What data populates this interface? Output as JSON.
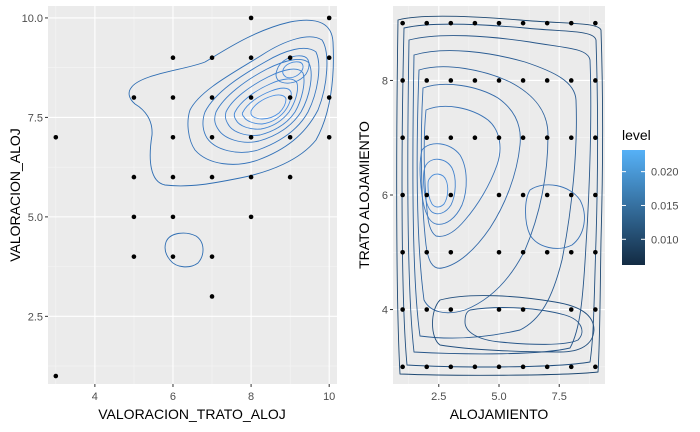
{
  "chart_data": [
    {
      "type": "scatter",
      "overlay": "density-contour",
      "xlabel": "VALORACION_TRATO_ALOJ",
      "ylabel": "VALORACION_ALOJ",
      "xlim": [
        2.8,
        10.2
      ],
      "ylim": [
        0.8,
        10.3
      ],
      "xticks": [
        4,
        6,
        8,
        10
      ],
      "yticks": [
        2.5,
        5.0,
        7.5,
        10.0
      ],
      "xtick_labels": [
        "4",
        "6",
        "8",
        "10"
      ],
      "ytick_labels": [
        "2.5",
        "5.0",
        "7.5",
        "10.0"
      ],
      "points": [
        [
          8,
          10
        ],
        [
          10,
          10
        ],
        [
          6,
          9
        ],
        [
          7,
          9
        ],
        [
          8,
          9
        ],
        [
          9,
          9
        ],
        [
          10,
          9
        ],
        [
          5,
          8
        ],
        [
          6,
          8
        ],
        [
          7,
          8
        ],
        [
          8,
          8
        ],
        [
          9,
          8
        ],
        [
          10,
          8
        ],
        [
          3,
          7
        ],
        [
          6,
          7
        ],
        [
          7,
          7
        ],
        [
          8,
          7
        ],
        [
          9,
          7
        ],
        [
          10,
          7
        ],
        [
          5,
          6
        ],
        [
          6,
          6
        ],
        [
          7,
          6
        ],
        [
          8,
          6
        ],
        [
          9,
          6
        ],
        [
          5,
          5
        ],
        [
          6,
          5
        ],
        [
          8,
          5
        ],
        [
          5,
          4
        ],
        [
          6,
          4
        ],
        [
          7,
          4
        ],
        [
          7,
          3
        ],
        [
          3,
          1
        ]
      ],
      "grid": true,
      "background": "#ebebeb"
    },
    {
      "type": "scatter",
      "overlay": "density-contour",
      "xlabel": "ALOJAMIENTO",
      "ylabel": "TRATO ALOJAMIENTO",
      "xlim": [
        0.6,
        9.4
      ],
      "ylim": [
        2.7,
        9.3
      ],
      "xticks": [
        2.5,
        5.0,
        7.5
      ],
      "yticks": [
        4,
        6,
        8
      ],
      "xtick_labels": [
        "2.5",
        "5.0",
        "7.5"
      ],
      "ytick_labels": [
        "4",
        "6",
        "8"
      ],
      "points": [
        [
          1,
          9
        ],
        [
          2,
          9
        ],
        [
          3,
          9
        ],
        [
          4,
          9
        ],
        [
          5,
          9
        ],
        [
          6,
          9
        ],
        [
          7,
          9
        ],
        [
          8,
          9
        ],
        [
          9,
          9
        ],
        [
          1,
          8
        ],
        [
          2,
          8
        ],
        [
          3,
          8
        ],
        [
          4,
          8
        ],
        [
          5,
          8
        ],
        [
          6,
          8
        ],
        [
          7,
          8
        ],
        [
          8,
          8
        ],
        [
          9,
          8
        ],
        [
          1,
          7
        ],
        [
          2,
          7
        ],
        [
          3,
          7
        ],
        [
          4,
          7
        ],
        [
          5,
          7
        ],
        [
          6,
          7
        ],
        [
          7,
          7
        ],
        [
          8,
          7
        ],
        [
          9,
          7
        ],
        [
          1,
          6
        ],
        [
          2,
          6
        ],
        [
          3,
          6
        ],
        [
          5,
          6
        ],
        [
          6,
          6
        ],
        [
          7,
          6
        ],
        [
          8,
          6
        ],
        [
          9,
          6
        ],
        [
          1,
          5
        ],
        [
          2,
          5
        ],
        [
          3,
          5
        ],
        [
          5,
          5
        ],
        [
          6,
          5
        ],
        [
          7,
          5
        ],
        [
          8,
          5
        ],
        [
          9,
          5
        ],
        [
          1,
          4
        ],
        [
          2,
          4
        ],
        [
          3,
          4
        ],
        [
          5,
          4
        ],
        [
          6,
          4
        ],
        [
          8,
          4
        ],
        [
          9,
          4
        ],
        [
          1,
          3
        ],
        [
          2,
          3
        ],
        [
          3,
          3
        ],
        [
          4,
          3
        ],
        [
          5,
          3
        ],
        [
          6,
          3
        ],
        [
          7,
          3
        ],
        [
          8,
          3
        ],
        [
          9,
          3
        ]
      ],
      "grid": true,
      "background": "#ebebeb"
    }
  ],
  "legend": {
    "title": "level",
    "placement": "right",
    "labels": [
      "0.020",
      "0.015",
      "0.010"
    ],
    "values": [
      0.02,
      0.015,
      0.01
    ],
    "range": [
      0.0062,
      0.0232
    ],
    "color_low": "#132b43",
    "color_high": "#56b1f7"
  }
}
